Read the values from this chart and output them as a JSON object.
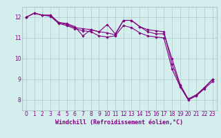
{
  "title": "",
  "xlabel": "Windchill (Refroidissement éolien,°C)",
  "x": [
    0,
    1,
    2,
    3,
    4,
    5,
    6,
    7,
    8,
    9,
    10,
    11,
    12,
    13,
    14,
    15,
    16,
    17,
    18,
    19,
    20,
    21,
    22,
    23
  ],
  "line1": [
    12.0,
    12.2,
    12.1,
    12.1,
    11.75,
    11.7,
    11.55,
    11.1,
    11.4,
    11.3,
    11.65,
    11.2,
    11.85,
    11.85,
    11.55,
    11.3,
    11.2,
    11.2,
    10.0,
    8.75,
    8.05,
    8.25,
    8.6,
    9.0
  ],
  "line2": [
    12.0,
    12.2,
    12.1,
    12.1,
    11.75,
    11.65,
    11.5,
    11.45,
    11.4,
    11.3,
    11.25,
    11.15,
    11.85,
    11.85,
    11.55,
    11.4,
    11.35,
    11.3,
    9.75,
    8.7,
    8.05,
    8.25,
    8.6,
    9.0
  ],
  "line3": [
    12.0,
    12.2,
    12.1,
    12.05,
    11.7,
    11.6,
    11.45,
    11.35,
    11.3,
    11.1,
    11.05,
    11.1,
    11.6,
    11.5,
    11.25,
    11.1,
    11.05,
    11.0,
    9.5,
    8.65,
    8.0,
    8.2,
    8.55,
    8.9
  ],
  "bg_color": "#d4eeed",
  "grid_color": "#b0c8c8",
  "line_color": "#800080",
  "ylim": [
    7.5,
    12.5
  ],
  "xlim": [
    -0.5,
    23.5
  ],
  "yticks": [
    8,
    9,
    10,
    11,
    12
  ],
  "xticks": [
    0,
    1,
    2,
    3,
    4,
    5,
    6,
    7,
    8,
    9,
    10,
    11,
    12,
    13,
    14,
    15,
    16,
    17,
    18,
    19,
    20,
    21,
    22,
    23
  ],
  "tick_fontsize": 5.5,
  "xlabel_fontsize": 6.0,
  "marker": "D",
  "markersize": 1.8,
  "linewidth": 0.8
}
